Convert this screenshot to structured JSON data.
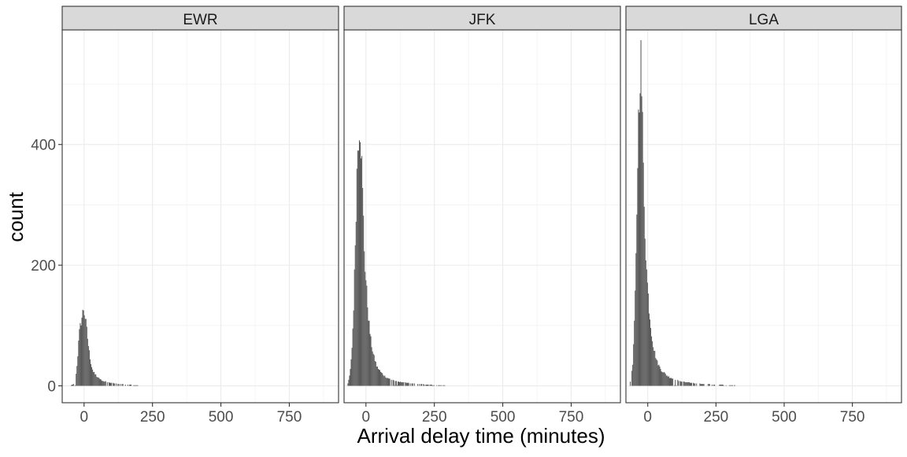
{
  "chart_data": {
    "type": "bar",
    "title": "",
    "xlabel": "Arrival delay time (minutes)",
    "ylabel": "count",
    "xlim": [
      -80,
      930
    ],
    "ylim": [
      -28,
      590
    ],
    "x_ticks": [
      0,
      250,
      500,
      750
    ],
    "x_tick_labels": [
      "0",
      "250",
      "500",
      "750"
    ],
    "y_ticks": [
      0,
      200,
      400
    ],
    "y_tick_labels": [
      "0",
      "200",
      "400"
    ],
    "grid": true,
    "colors": {
      "bar": "#595959",
      "strip_fill": "#d9d9d9",
      "panel_border": "#333333",
      "grid_major": "#ebebeb",
      "grid_minor": "#f2f2f2",
      "text": "#1a1a1a",
      "tick_text": "#4d4d4d"
    },
    "facets": [
      {
        "label": "EWR",
        "bin_width": 3,
        "bin_centers_range": [
          -50,
          200
        ],
        "profile": [
          [
            -50,
            0
          ],
          [
            -42,
            2
          ],
          [
            -36,
            4
          ],
          [
            -30,
            15
          ],
          [
            -24,
            45
          ],
          [
            -18,
            85
          ],
          [
            -12,
            105
          ],
          [
            -6,
            118
          ],
          [
            -2,
            128
          ],
          [
            2,
            120
          ],
          [
            8,
            100
          ],
          [
            14,
            75
          ],
          [
            20,
            52
          ],
          [
            26,
            35
          ],
          [
            35,
            22
          ],
          [
            50,
            14
          ],
          [
            70,
            8
          ],
          [
            100,
            5
          ],
          [
            130,
            3
          ],
          [
            160,
            2
          ],
          [
            200,
            1
          ]
        ]
      },
      {
        "label": "JFK",
        "bin_width": 3,
        "bin_centers_range": [
          -75,
          290
        ],
        "profile": [
          [
            -75,
            0
          ],
          [
            -66,
            4
          ],
          [
            -58,
            20
          ],
          [
            -50,
            70
          ],
          [
            -43,
            160
          ],
          [
            -37,
            280
          ],
          [
            -31,
            390
          ],
          [
            -26,
            428
          ],
          [
            -22,
            443
          ],
          [
            -17,
            395
          ],
          [
            -11,
            300
          ],
          [
            -5,
            215
          ],
          [
            2,
            160
          ],
          [
            10,
            110
          ],
          [
            18,
            75
          ],
          [
            28,
            50
          ],
          [
            40,
            32
          ],
          [
            55,
            22
          ],
          [
            75,
            14
          ],
          [
            100,
            9
          ],
          [
            130,
            6
          ],
          [
            170,
            4
          ],
          [
            220,
            2
          ],
          [
            260,
            1
          ],
          [
            290,
            1
          ]
        ]
      },
      {
        "label": "LGA",
        "bin_width": 3,
        "bin_centers_range": [
          -70,
          320
        ],
        "profile": [
          [
            -70,
            0
          ],
          [
            -62,
            8
          ],
          [
            -55,
            35
          ],
          [
            -48,
            110
          ],
          [
            -42,
            230
          ],
          [
            -37,
            380
          ],
          [
            -32,
            480
          ],
          [
            -28,
            530
          ],
          [
            -25,
            540
          ],
          [
            -21,
            470
          ],
          [
            -16,
            360
          ],
          [
            -10,
            260
          ],
          [
            -4,
            190
          ],
          [
            4,
            135
          ],
          [
            12,
            95
          ],
          [
            22,
            62
          ],
          [
            34,
            40
          ],
          [
            50,
            26
          ],
          [
            70,
            17
          ],
          [
            95,
            11
          ],
          [
            125,
            7
          ],
          [
            160,
            5
          ],
          [
            200,
            3
          ],
          [
            260,
            2
          ],
          [
            300,
            1
          ],
          [
            320,
            1
          ]
        ]
      }
    ]
  }
}
